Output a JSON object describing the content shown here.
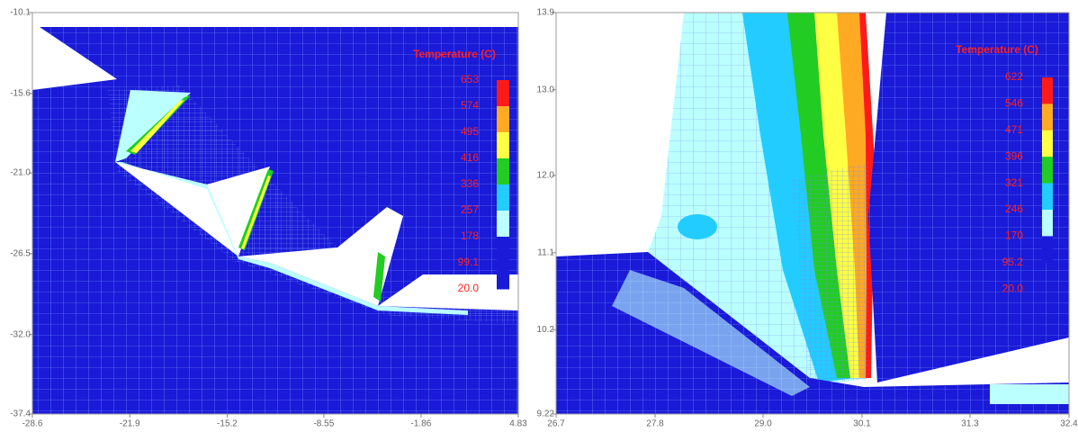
{
  "chart_data": [
    {
      "type": "contour",
      "xlim": [
        -28.6,
        4.83
      ],
      "ylim": [
        -37.4,
        -10.1
      ],
      "xticks": [
        -28.6,
        -21.9,
        -15.2,
        -8.55,
        -1.86,
        4.83
      ],
      "yticks": [
        -10.1,
        -15.6,
        {
          "value": -21.0,
          "label": "-21.0"
        },
        -26.5,
        {
          "value": -32.0,
          "label": "-32.0"
        },
        -37.4
      ],
      "legend": {
        "title": "Temperature (C)",
        "levels": [
          653,
          574,
          495,
          416,
          336,
          257,
          178,
          99.1,
          {
            "value": 20.0,
            "label": "20.0"
          }
        ],
        "colors": [
          "#ff1a1a",
          "#ffaa22",
          "#ffff44",
          "#22cc22",
          "#22ccff",
          "#bbffff",
          "#1a1ad8",
          "#1a1ad8"
        ]
      }
    },
    {
      "type": "contour",
      "xlim": [
        26.7,
        32.4
      ],
      "ylim": [
        9.22,
        13.9
      ],
      "xticks": [
        26.7,
        27.8,
        {
          "value": 29.0,
          "label": "29.0"
        },
        30.1,
        31.3,
        32.4
      ],
      "yticks": [
        9.22,
        10.2,
        11.1,
        {
          "value": 12.0,
          "label": "12.0"
        },
        {
          "value": 13.0,
          "label": "13.0"
        },
        13.9
      ],
      "legend": {
        "title": "Temperature (C)",
        "levels": [
          622,
          546,
          471,
          396,
          321,
          246,
          170,
          95.2,
          {
            "value": 20.0,
            "label": "20.0"
          }
        ],
        "colors": [
          "#ff1a1a",
          "#ffaa22",
          "#ffff44",
          "#22cc22",
          "#22ccff",
          "#bbffff",
          "#1a1ad8"
        ]
      }
    }
  ]
}
